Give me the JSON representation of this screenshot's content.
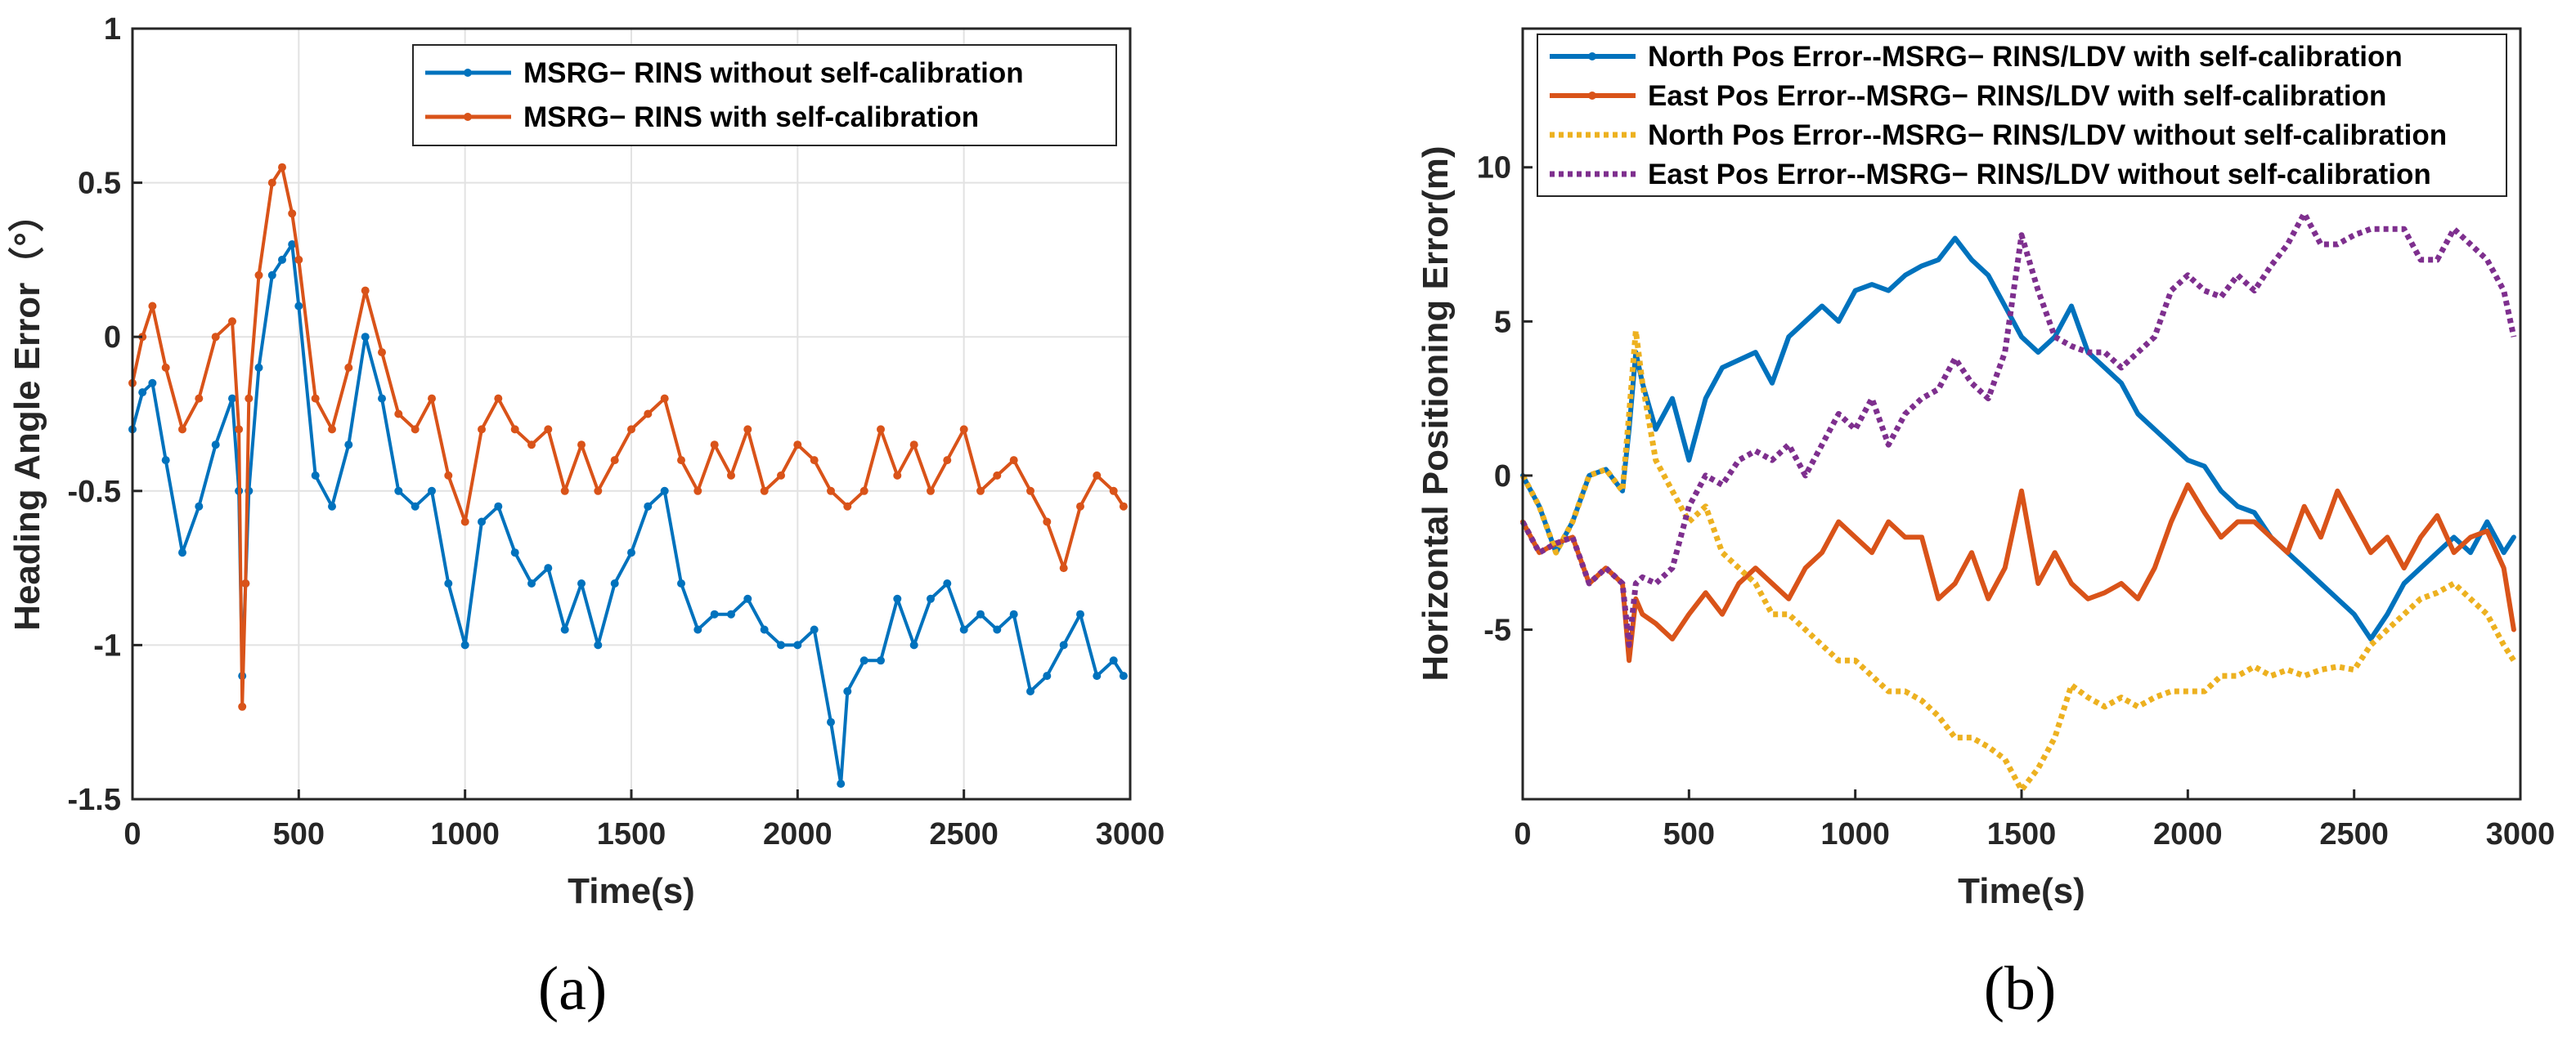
{
  "chart_data": [
    {
      "type": "line",
      "panel_label": "(a)",
      "title": "",
      "xlabel": "Time(s)",
      "ylabel": "Heading Angle Error（°）",
      "xlim": [
        0,
        3000
      ],
      "ylim": [
        -1.5,
        1
      ],
      "xticks": [
        "0",
        "500",
        "1000",
        "1500",
        "2000",
        "2500",
        "3000"
      ],
      "yticks": [
        "-1.5",
        "-1",
        "-0.5",
        "0",
        "0.5",
        "1"
      ],
      "grid": true,
      "legend_position": "top-right",
      "series": [
        {
          "name": "MSRG− RINS without self-calibration",
          "color": "#0072BD",
          "style": "solid-dotted-markers",
          "x": [
            0,
            30,
            60,
            100,
            150,
            200,
            250,
            300,
            320,
            330,
            340,
            350,
            380,
            420,
            450,
            480,
            500,
            550,
            600,
            650,
            700,
            750,
            800,
            850,
            900,
            950,
            1000,
            1050,
            1100,
            1150,
            1200,
            1250,
            1300,
            1350,
            1400,
            1450,
            1500,
            1550,
            1600,
            1650,
            1700,
            1750,
            1800,
            1850,
            1900,
            1950,
            2000,
            2050,
            2100,
            2130,
            2150,
            2200,
            2250,
            2300,
            2350,
            2400,
            2450,
            2500,
            2550,
            2600,
            2650,
            2700,
            2750,
            2800,
            2850,
            2900,
            2950,
            2980
          ],
          "y": [
            -0.3,
            -0.18,
            -0.15,
            -0.4,
            -0.7,
            -0.55,
            -0.35,
            -0.2,
            -0.5,
            -1.1,
            -0.8,
            -0.5,
            -0.1,
            0.2,
            0.25,
            0.3,
            0.1,
            -0.45,
            -0.55,
            -0.35,
            0.0,
            -0.2,
            -0.5,
            -0.55,
            -0.5,
            -0.8,
            -1.0,
            -0.6,
            -0.55,
            -0.7,
            -0.8,
            -0.75,
            -0.95,
            -0.8,
            -1.0,
            -0.8,
            -0.7,
            -0.55,
            -0.5,
            -0.8,
            -0.95,
            -0.9,
            -0.9,
            -0.85,
            -0.95,
            -1.0,
            -1.0,
            -0.95,
            -1.25,
            -1.45,
            -1.15,
            -1.05,
            -1.05,
            -0.85,
            -1.0,
            -0.85,
            -0.8,
            -0.95,
            -0.9,
            -0.95,
            -0.9,
            -1.15,
            -1.1,
            -1.0,
            -0.9,
            -1.1,
            -1.05,
            -1.1
          ]
        },
        {
          "name": "MSRG− RINS with self-calibration",
          "color": "#D95319",
          "style": "solid-dotted-markers",
          "x": [
            0,
            30,
            60,
            100,
            150,
            200,
            250,
            300,
            320,
            330,
            340,
            350,
            380,
            420,
            450,
            480,
            500,
            550,
            600,
            650,
            700,
            750,
            800,
            850,
            900,
            950,
            1000,
            1050,
            1100,
            1150,
            1200,
            1250,
            1300,
            1350,
            1400,
            1450,
            1500,
            1550,
            1600,
            1650,
            1700,
            1750,
            1800,
            1850,
            1900,
            1950,
            2000,
            2050,
            2100,
            2150,
            2200,
            2250,
            2300,
            2350,
            2400,
            2450,
            2500,
            2550,
            2600,
            2650,
            2700,
            2750,
            2800,
            2850,
            2900,
            2950,
            2980
          ],
          "y": [
            -0.15,
            0.0,
            0.1,
            -0.1,
            -0.3,
            -0.2,
            0.0,
            0.05,
            -0.3,
            -1.2,
            -0.8,
            -0.2,
            0.2,
            0.5,
            0.55,
            0.4,
            0.25,
            -0.2,
            -0.3,
            -0.1,
            0.15,
            -0.05,
            -0.25,
            -0.3,
            -0.2,
            -0.45,
            -0.6,
            -0.3,
            -0.2,
            -0.3,
            -0.35,
            -0.3,
            -0.5,
            -0.35,
            -0.5,
            -0.4,
            -0.3,
            -0.25,
            -0.2,
            -0.4,
            -0.5,
            -0.35,
            -0.45,
            -0.3,
            -0.5,
            -0.45,
            -0.35,
            -0.4,
            -0.5,
            -0.55,
            -0.5,
            -0.3,
            -0.45,
            -0.35,
            -0.5,
            -0.4,
            -0.3,
            -0.5,
            -0.45,
            -0.4,
            -0.5,
            -0.6,
            -0.75,
            -0.55,
            -0.45,
            -0.5,
            -0.55
          ]
        }
      ]
    },
    {
      "type": "line",
      "panel_label": "(b)",
      "title": "",
      "xlabel": "Time(s)",
      "ylabel": "Horizontal Positioning Error(m)",
      "xlim": [
        0,
        3000
      ],
      "ylim": [
        -10.5,
        14.5
      ],
      "xticks": [
        "0",
        "500",
        "1000",
        "1500",
        "2000",
        "2500",
        "3000"
      ],
      "ytick_values": [
        -5,
        0,
        5,
        10
      ],
      "yticks": [
        "-5",
        "0",
        "5",
        "10"
      ],
      "grid": false,
      "legend_position": "top-left",
      "series": [
        {
          "name": "North Pos Error--MSRG− RINS/LDV with self-calibration",
          "color": "#0072BD",
          "style": "solid",
          "x": [
            0,
            50,
            100,
            150,
            200,
            250,
            300,
            320,
            340,
            360,
            400,
            450,
            500,
            550,
            600,
            700,
            750,
            800,
            900,
            950,
            1000,
            1050,
            1100,
            1150,
            1200,
            1250,
            1300,
            1350,
            1400,
            1450,
            1500,
            1550,
            1600,
            1650,
            1700,
            1750,
            1800,
            1850,
            1900,
            1950,
            2000,
            2050,
            2100,
            2150,
            2200,
            2250,
            2300,
            2350,
            2400,
            2450,
            2500,
            2550,
            2600,
            2650,
            2700,
            2750,
            2800,
            2850,
            2900,
            2950,
            2980
          ],
          "y": [
            0,
            -1,
            -2.5,
            -1.5,
            0,
            0.2,
            -0.5,
            1.5,
            4,
            3,
            1.5,
            2.5,
            0.5,
            2.5,
            3.5,
            4,
            3,
            4.5,
            5.5,
            5,
            6,
            6.2,
            6,
            6.5,
            6.8,
            7,
            7.7,
            7,
            6.5,
            5.5,
            4.5,
            4,
            4.5,
            5.5,
            4,
            3.5,
            3,
            2,
            1.5,
            1,
            0.5,
            0.3,
            -0.5,
            -1,
            -1.2,
            -2,
            -2.5,
            -3,
            -3.5,
            -4,
            -4.5,
            -5.3,
            -4.5,
            -3.5,
            -3,
            -2.5,
            -2,
            -2.5,
            -1.5,
            -2.5,
            -2
          ]
        },
        {
          "name": "East Pos Error--MSRG− RINS/LDV with self-calibration",
          "color": "#D95319",
          "style": "solid",
          "x": [
            0,
            50,
            100,
            150,
            200,
            250,
            300,
            320,
            340,
            360,
            400,
            450,
            500,
            550,
            600,
            650,
            700,
            750,
            800,
            850,
            900,
            950,
            1000,
            1050,
            1100,
            1150,
            1200,
            1250,
            1300,
            1350,
            1400,
            1450,
            1500,
            1550,
            1600,
            1650,
            1700,
            1750,
            1800,
            1850,
            1900,
            1950,
            2000,
            2050,
            2100,
            2150,
            2200,
            2250,
            2300,
            2350,
            2400,
            2450,
            2500,
            2550,
            2600,
            2650,
            2700,
            2750,
            2800,
            2850,
            2900,
            2950,
            2980
          ],
          "y": [
            -1.5,
            -2.5,
            -2.2,
            -2,
            -3.5,
            -3,
            -3.5,
            -6,
            -4,
            -4.5,
            -4.8,
            -5.3,
            -4.5,
            -3.8,
            -4.5,
            -3.5,
            -3,
            -3.5,
            -4,
            -3,
            -2.5,
            -1.5,
            -2,
            -2.5,
            -1.5,
            -2,
            -2,
            -4,
            -3.5,
            -2.5,
            -4,
            -3,
            -0.5,
            -3.5,
            -2.5,
            -3.5,
            -4,
            -3.8,
            -3.5,
            -4,
            -3,
            -1.5,
            -0.3,
            -1.2,
            -2,
            -1.5,
            -1.5,
            -2,
            -2.5,
            -1,
            -2,
            -0.5,
            -1.5,
            -2.5,
            -2,
            -3,
            -2,
            -1.3,
            -2.5,
            -2,
            -1.8,
            -3,
            -5
          ]
        },
        {
          "name": "North Pos Error--MSRG− RINS/LDV without self-calibration",
          "color": "#EDB120",
          "style": "dotted",
          "x": [
            0,
            50,
            100,
            150,
            200,
            250,
            300,
            320,
            340,
            360,
            400,
            450,
            500,
            550,
            600,
            650,
            700,
            750,
            800,
            850,
            900,
            950,
            1000,
            1050,
            1100,
            1150,
            1200,
            1250,
            1300,
            1350,
            1400,
            1450,
            1500,
            1550,
            1600,
            1650,
            1700,
            1750,
            1800,
            1850,
            1900,
            1950,
            2000,
            2050,
            2100,
            2150,
            2200,
            2250,
            2300,
            2350,
            2400,
            2450,
            2500,
            2550,
            2600,
            2650,
            2700,
            2750,
            2800,
            2850,
            2900,
            2950,
            2980
          ],
          "y": [
            0,
            -1,
            -2.5,
            -1.5,
            0,
            0.2,
            -0.5,
            2,
            4.7,
            3,
            0.5,
            -0.5,
            -1.5,
            -1,
            -2.5,
            -3,
            -3.5,
            -4.5,
            -4.5,
            -5,
            -5.5,
            -6,
            -6,
            -6.5,
            -7,
            -7,
            -7.3,
            -7.8,
            -8.5,
            -8.5,
            -8.8,
            -9.2,
            -10.2,
            -9.5,
            -8.5,
            -6.8,
            -7.2,
            -7.5,
            -7.2,
            -7.5,
            -7.2,
            -7,
            -7,
            -7,
            -6.5,
            -6.5,
            -6.2,
            -6.5,
            -6.3,
            -6.5,
            -6.3,
            -6.2,
            -6.3,
            -5.5,
            -5,
            -4.5,
            -4,
            -3.8,
            -3.5,
            -4,
            -4.5,
            -5.5,
            -6
          ]
        },
        {
          "name": "East Pos Error--MSRG− RINS/LDV without self-calibration",
          "color": "#7E2F8E",
          "style": "dotted",
          "x": [
            0,
            50,
            100,
            150,
            200,
            250,
            300,
            320,
            340,
            360,
            400,
            450,
            500,
            550,
            600,
            650,
            700,
            750,
            800,
            850,
            900,
            950,
            1000,
            1050,
            1100,
            1150,
            1200,
            1250,
            1300,
            1350,
            1400,
            1450,
            1500,
            1550,
            1600,
            1650,
            1700,
            1750,
            1800,
            1850,
            1900,
            1950,
            2000,
            2050,
            2100,
            2150,
            2200,
            2250,
            2300,
            2350,
            2400,
            2450,
            2500,
            2550,
            2600,
            2650,
            2700,
            2750,
            2800,
            2850,
            2900,
            2950,
            2980
          ],
          "y": [
            -1.5,
            -2.5,
            -2.2,
            -2,
            -3.5,
            -3,
            -3.5,
            -5.5,
            -3.5,
            -3.3,
            -3.5,
            -3,
            -1,
            0,
            -0.3,
            0.5,
            0.8,
            0.5,
            1,
            0,
            1,
            2,
            1.5,
            2.5,
            1,
            2,
            2.5,
            2.8,
            3.8,
            3,
            2.5,
            4,
            7.8,
            6,
            4.5,
            4.2,
            4,
            4,
            3.5,
            4,
            4.5,
            6,
            6.5,
            6,
            5.8,
            6.5,
            6,
            6.8,
            7.5,
            8.5,
            7.5,
            7.5,
            7.8,
            8,
            8,
            8,
            7,
            7,
            8,
            7.5,
            7,
            6,
            4.5
          ]
        }
      ]
    }
  ]
}
